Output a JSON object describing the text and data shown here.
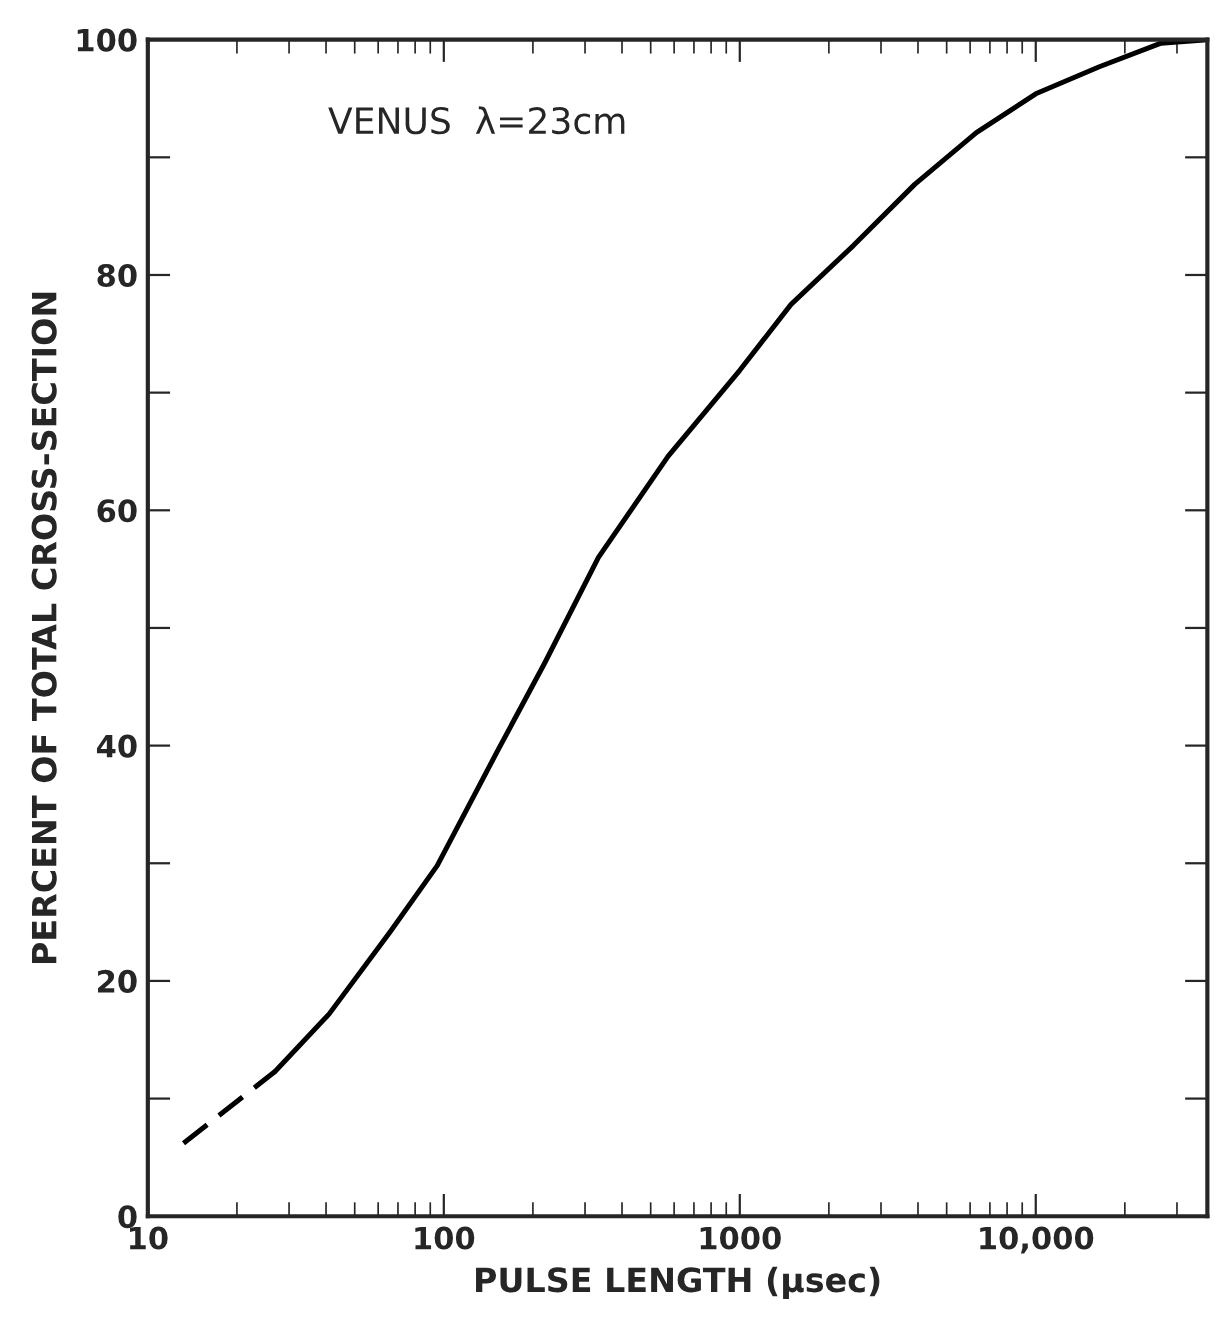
{
  "chart_data": {
    "type": "line",
    "xlabel": "PULSE LENGTH (μsec)",
    "ylabel": "PERCENT OF TOTAL CROSS-SECTION",
    "annotations": [
      "VENUS  λ=23cm"
    ],
    "log": "x",
    "xlim": [
      10,
      38000
    ],
    "ylim": [
      0,
      100
    ],
    "xticks": [
      10,
      100,
      1000,
      {
        "value": 10000,
        "label": "10,000"
      }
    ],
    "yticks": [
      0,
      {
        "value": 10,
        "label": null
      },
      20,
      {
        "value": 30,
        "label": null
      },
      40,
      {
        "value": 50,
        "label": null
      },
      60,
      {
        "value": 70,
        "label": null
      },
      80,
      {
        "value": 90,
        "label": null
      },
      100
    ],
    "grid": false,
    "legend": false,
    "series": [
      {
        "color": "#000000",
        "line_style": "dashed",
        "x": [
          13.2,
          26.9
        ],
        "values": [
          6.2,
          12.3
        ]
      },
      {
        "color": "#000000",
        "line_style": "solid",
        "x": [
          26.9,
          41,
          66,
          95,
          153,
          219,
          333,
          573,
          1000,
          1490,
          2420,
          3900,
          6300,
          10000,
          16400,
          26500,
          38000
        ],
        "values": [
          12.3,
          17.2,
          24.2,
          29.8,
          39.7,
          47.0,
          56.0,
          64.6,
          71.9,
          77.5,
          82.5,
          87.7,
          92.1,
          95.4,
          97.7,
          99.7,
          100
        ]
      }
    ]
  }
}
